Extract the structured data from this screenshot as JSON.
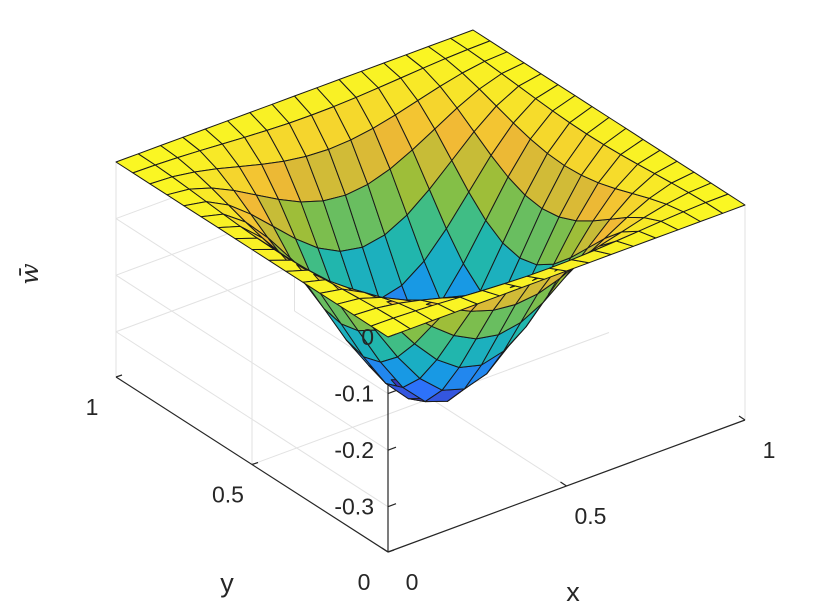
{
  "chart_data": {
    "type": "surface",
    "title": "",
    "xlabel": "x",
    "ylabel": "y",
    "zlabel": "w̄",
    "xlim": [
      0,
      1
    ],
    "ylim": [
      0,
      1
    ],
    "zlim": [
      -0.38,
      0
    ],
    "x_ticks": [
      "0",
      "0.5",
      "1"
    ],
    "y_ticks": [
      "0",
      "0.5",
      "1"
    ],
    "z_ticks": [
      "0",
      "-0.1",
      "-0.2",
      "-0.3"
    ],
    "z_tick_values": [
      0,
      -0.1,
      -0.2,
      -0.3
    ],
    "grid_divisions": 16,
    "surface": {
      "function": "z = -0.38 * sin(pi*x)^2 * sin(pi*y)^2",
      "min_value": -0.38,
      "min_at": [
        0.5,
        0.5
      ]
    },
    "colormap": [
      "#3e26a8",
      "#2f6ffb",
      "#12a4de",
      "#26bc9d",
      "#92bf3a",
      "#f1b935",
      "#faf723"
    ],
    "grid": true,
    "box": true
  }
}
